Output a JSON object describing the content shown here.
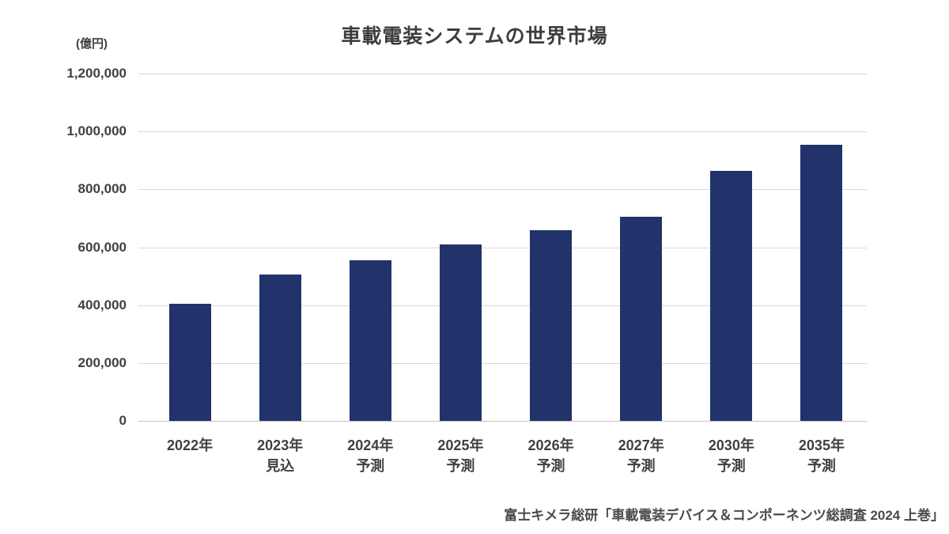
{
  "page": {
    "background": "#ffffff"
  },
  "chart_data": {
    "type": "bar",
    "title": "車載電装システムの世界市場",
    "unit": "(億円)",
    "categories": [
      "2022年",
      "2023年見込",
      "2024年予測",
      "2025年予測",
      "2026年予測",
      "2027年予測",
      "2030年予測",
      "2035年予測"
    ],
    "category_lines": [
      [
        "2022年"
      ],
      [
        "2023年",
        "見込"
      ],
      [
        "2024年",
        "予測"
      ],
      [
        "2025年",
        "予測"
      ],
      [
        "2026年",
        "予測"
      ],
      [
        "2027年",
        "予測"
      ],
      [
        "2030年",
        "予測"
      ],
      [
        "2035年",
        "予測"
      ]
    ],
    "values": [
      405000,
      505000,
      555000,
      610000,
      660000,
      705000,
      865000,
      955000
    ],
    "xlabel": "",
    "ylabel": "(億円)",
    "ylim": [
      0,
      1200000
    ],
    "ytick_step": 200000,
    "ytick_labels": [
      "0",
      "200,000",
      "400,000",
      "600,000",
      "800,000",
      "1,000,000",
      "1,200,000"
    ],
    "grid": true,
    "legend": "none",
    "source": "富士キメラ総研「車載電装デバイス＆コンポーネンツ総調査 2024 上巻」"
  },
  "colors": {
    "bar": "#21336a",
    "grid": "#d9d9d9",
    "axis_line": "#c3c3c3",
    "text": "#404040",
    "title_text": "#3d3d3d",
    "background": "#ffffff"
  }
}
